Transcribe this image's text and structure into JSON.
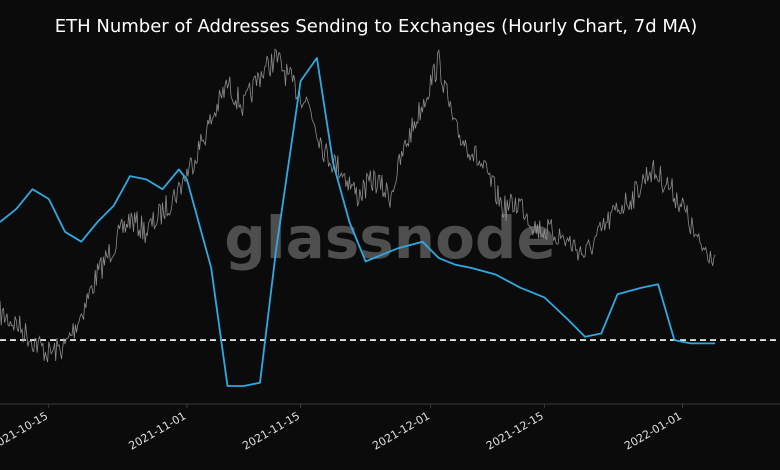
{
  "chart_data": {
    "type": "line",
    "title": "ETH Number of Addresses Sending to Exchanges (Hourly Chart, 7d MA)",
    "watermark": "glassnode",
    "x_ticks": [
      "2021-10-15",
      "2021-11-01",
      "2021-11-15",
      "2021-12-01",
      "2021-12-15",
      "2022-01-01"
    ],
    "xlim": [
      "2021-10-09",
      "2022-01-13"
    ],
    "ylim": [
      0,
      100
    ],
    "reference_line": {
      "style": "dashed",
      "color": "#ffffff",
      "value": 14
    },
    "colors": {
      "background": "#0b0b0b",
      "axis": "#3a3a3a",
      "title": "#ffffff",
      "tick": "#e0e0e0",
      "watermark": "#5a5a5a"
    },
    "series": [
      {
        "style": "thin-noisy",
        "color": "#9a9a9a",
        "x": [
          "2021-10-09",
          "2021-10-11",
          "2021-10-13",
          "2021-10-15",
          "2021-10-17",
          "2021-10-19",
          "2021-10-21",
          "2021-10-23",
          "2021-10-25",
          "2021-10-27",
          "2021-10-29",
          "2021-10-31",
          "2021-11-02",
          "2021-11-04",
          "2021-11-06",
          "2021-11-08",
          "2021-11-10",
          "2021-11-12",
          "2021-11-14",
          "2021-11-16",
          "2021-11-18",
          "2021-11-20",
          "2021-11-22",
          "2021-11-24",
          "2021-11-26",
          "2021-11-28",
          "2021-11-30",
          "2021-12-02",
          "2021-12-04",
          "2021-12-06",
          "2021-12-08",
          "2021-12-10",
          "2021-12-12",
          "2021-12-14",
          "2021-12-16",
          "2021-12-18",
          "2021-12-20",
          "2021-12-22",
          "2021-12-24",
          "2021-12-26",
          "2021-12-28",
          "2021-12-30",
          "2022-01-01",
          "2022-01-03",
          "2022-01-05"
        ],
        "values": [
          22,
          19,
          14,
          10,
          12,
          22,
          34,
          43,
          51,
          47,
          53,
          60,
          70,
          81,
          92,
          85,
          95,
          100,
          92,
          86,
          71,
          66,
          58,
          63,
          58,
          74,
          86,
          99,
          78,
          72,
          64,
          54,
          56,
          48,
          47,
          44,
          40,
          47,
          54,
          58,
          66,
          62,
          55,
          43,
          40
        ]
      },
      {
        "style": "trend",
        "color": "#2fa9e2",
        "x": [
          "2021-10-09",
          "2021-10-11",
          "2021-10-13",
          "2021-10-15",
          "2021-10-17",
          "2021-10-19",
          "2021-10-21",
          "2021-10-23",
          "2021-10-25",
          "2021-10-27",
          "2021-10-29",
          "2021-10-31",
          "2021-11-01",
          "2021-11-04",
          "2021-11-06",
          "2021-11-08",
          "2021-11-10",
          "2021-11-12",
          "2021-11-15",
          "2021-11-17",
          "2021-11-19",
          "2021-11-21",
          "2021-11-23",
          "2021-11-25",
          "2021-11-27",
          "2021-11-30",
          "2021-12-02",
          "2021-12-04",
          "2021-12-06",
          "2021-12-09",
          "2021-12-12",
          "2021-12-15",
          "2021-12-18",
          "2021-12-20",
          "2021-12-22",
          "2021-12-24",
          "2021-12-27",
          "2021-12-29",
          "2021-12-31",
          "2022-01-02",
          "2022-01-05"
        ],
        "values": [
          50,
          54,
          60,
          57,
          47,
          44,
          50,
          55,
          64,
          63,
          60,
          66,
          63,
          36,
          0,
          0,
          1,
          42,
          93,
          100,
          68,
          50,
          38,
          40,
          42,
          44,
          39,
          37,
          36,
          34,
          30,
          27,
          20,
          15,
          16,
          28,
          30,
          31,
          14,
          13,
          13
        ]
      }
    ]
  }
}
